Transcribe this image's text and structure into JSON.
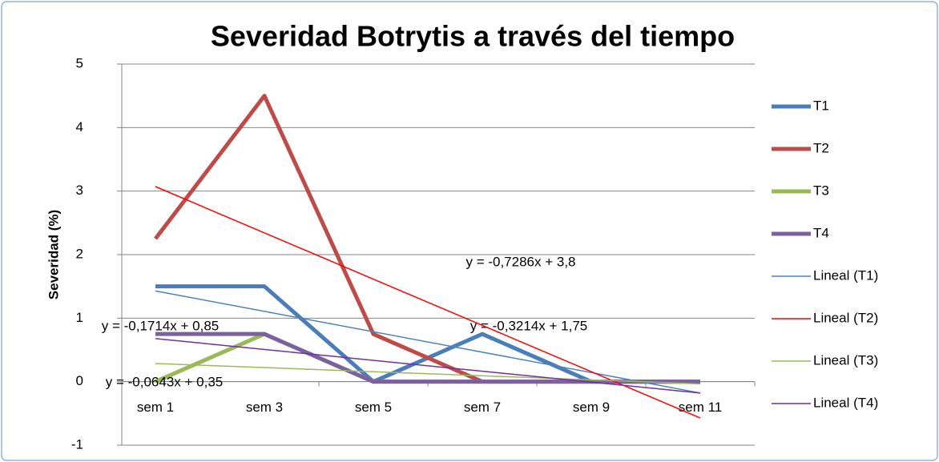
{
  "chart_data": {
    "type": "line",
    "title": "Severidad Botrytis a través del tiempo",
    "y_label": "Severidad (%)",
    "categories": [
      "sem 1",
      "sem 3",
      "sem 5",
      "sem 7",
      "sem 9",
      "sem 11"
    ],
    "series": [
      {
        "name": "T1",
        "color": "#4a7ebb",
        "values": [
          1.5,
          1.5,
          0,
          0.75,
          0,
          0
        ]
      },
      {
        "name": "T2",
        "color": "#be4b48",
        "values": [
          2.25,
          4.5,
          0.75,
          0,
          0,
          0
        ]
      },
      {
        "name": "T3",
        "color": "#98b954",
        "values": [
          0,
          0.75,
          0,
          0,
          0,
          0
        ]
      },
      {
        "name": "T4",
        "color": "#7d60a0",
        "values": [
          0.75,
          0.75,
          0,
          0,
          0,
          0
        ]
      }
    ],
    "trendlines": [
      {
        "name": "Lineal (T1)",
        "color": "#4f81bd",
        "slope": -0.3214,
        "intercept": 1.75,
        "equation": "y = -0,3214x + 1,75"
      },
      {
        "name": "Lineal (T2)",
        "color": "#ff0000",
        "slope": -0.7286,
        "intercept": 3.8,
        "equation": "y = -0,7286x + 3,8"
      },
      {
        "name": "Lineal (T3)",
        "color": "#9bbb59",
        "slope": -0.0643,
        "intercept": 0.35,
        "equation": "y = -0,0643x + 0,35"
      },
      {
        "name": "Lineal (T4)",
        "color": "#7030a0",
        "slope": -0.1714,
        "intercept": 0.85,
        "equation": "y = -0,1714x + 0,85"
      }
    ],
    "ylim": [
      -1,
      5
    ],
    "yticks": [
      -1,
      0,
      1,
      2,
      3,
      4,
      5
    ],
    "grid": true,
    "legend": "right"
  }
}
